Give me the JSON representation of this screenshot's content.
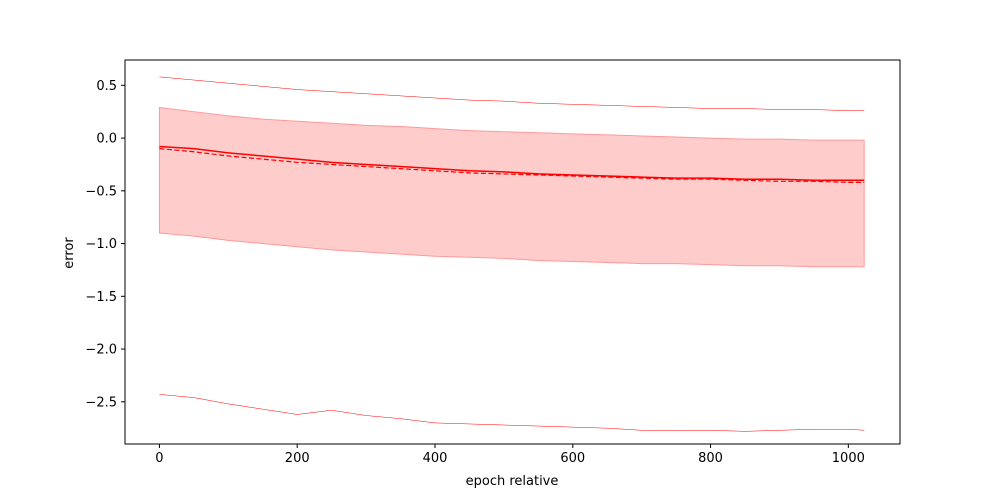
{
  "chart_data": {
    "type": "line",
    "title": "",
    "xlabel": "epoch relative",
    "ylabel": "error",
    "xlim": [
      -50,
      1075
    ],
    "ylim": [
      -2.9,
      0.74
    ],
    "xticks": [
      0,
      200,
      400,
      600,
      800,
      1000
    ],
    "yticks": [
      0.5,
      0.0,
      -0.5,
      -1.0,
      -1.5,
      -2.0,
      -2.5
    ],
    "grid": false,
    "legend": "none",
    "colors": {
      "line": "#ff0000",
      "band_fill": "#ffcccc",
      "band_edge": "#ff9999",
      "axis": "#000000"
    },
    "x": [
      0,
      50,
      100,
      150,
      200,
      250,
      300,
      350,
      400,
      450,
      500,
      550,
      600,
      650,
      700,
      750,
      800,
      850,
      900,
      950,
      1000,
      1023
    ],
    "series": [
      {
        "style": "solid",
        "values": [
          -0.08,
          -0.1,
          -0.14,
          -0.17,
          -0.2,
          -0.23,
          -0.25,
          -0.27,
          -0.29,
          -0.31,
          -0.32,
          -0.34,
          -0.35,
          -0.36,
          -0.37,
          -0.38,
          -0.38,
          -0.39,
          -0.39,
          -0.4,
          -0.4,
          -0.4
        ]
      },
      {
        "style": "dashed",
        "values": [
          -0.1,
          -0.13,
          -0.17,
          -0.2,
          -0.23,
          -0.25,
          -0.27,
          -0.29,
          -0.31,
          -0.33,
          -0.34,
          -0.35,
          -0.36,
          -0.37,
          -0.38,
          -0.39,
          -0.39,
          -0.4,
          -0.41,
          -0.41,
          -0.42,
          -0.42
        ]
      },
      {
        "style": "thin",
        "values": [
          0.58,
          0.55,
          0.52,
          0.49,
          0.46,
          0.44,
          0.42,
          0.4,
          0.38,
          0.36,
          0.35,
          0.33,
          0.32,
          0.31,
          0.3,
          0.29,
          0.28,
          0.28,
          0.27,
          0.27,
          0.26,
          0.26
        ]
      },
      {
        "style": "thin",
        "values": [
          -2.43,
          -2.46,
          -2.52,
          -2.57,
          -2.62,
          -2.58,
          -2.63,
          -2.66,
          -2.7,
          -2.71,
          -2.72,
          -2.73,
          -2.74,
          -2.75,
          -2.77,
          -2.77,
          -2.77,
          -2.78,
          -2.77,
          -2.76,
          -2.76,
          -2.77
        ]
      }
    ],
    "band": {
      "upper": [
        0.29,
        0.25,
        0.21,
        0.18,
        0.16,
        0.14,
        0.12,
        0.11,
        0.09,
        0.07,
        0.06,
        0.05,
        0.04,
        0.03,
        0.02,
        0.01,
        0.0,
        -0.01,
        -0.01,
        -0.02,
        -0.02,
        -0.02
      ],
      "lower": [
        -0.9,
        -0.93,
        -0.97,
        -1.0,
        -1.03,
        -1.06,
        -1.08,
        -1.1,
        -1.12,
        -1.13,
        -1.14,
        -1.16,
        -1.17,
        -1.18,
        -1.19,
        -1.19,
        -1.2,
        -1.21,
        -1.21,
        -1.22,
        -1.22,
        -1.22
      ]
    }
  }
}
